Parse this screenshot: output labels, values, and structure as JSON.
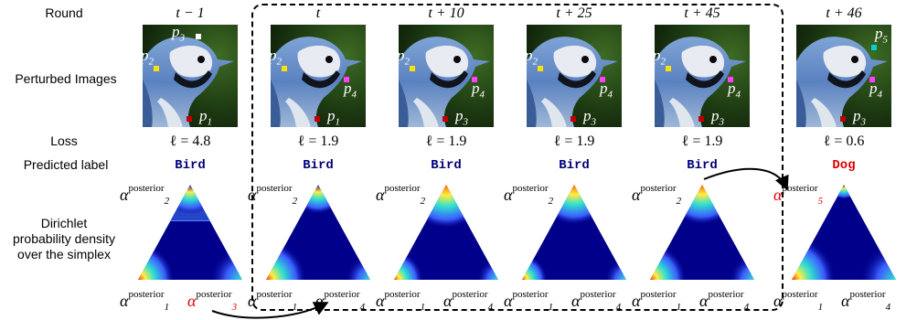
{
  "row_labels": {
    "round": "Round",
    "perturbed": "Perturbed Images",
    "loss": "Loss",
    "predicted": "Predicted label",
    "dirichlet_1": "Dirichlet",
    "dirichlet_2": "probability density",
    "dirichlet_3": "over the simplex"
  },
  "columns": [
    {
      "round": "t − 1",
      "loss": "ℓ = 4.8",
      "pred": "Bird",
      "pred_color": "#00007a",
      "points": [
        {
          "label": "p",
          "sub": "3",
          "color": "#ffffff"
        },
        {
          "label": "p",
          "sub": "2",
          "color": "#ffe000"
        },
        {
          "label": "p",
          "sub": "1",
          "color": "#c00000"
        }
      ],
      "alpha_top": {
        "sub": "2",
        "color": "#000000"
      },
      "alpha_left": {
        "sub": "1",
        "color": "#000000"
      },
      "alpha_right": {
        "sub": "3",
        "color": "#e00000"
      }
    },
    {
      "round": "t",
      "loss": "ℓ = 1.9",
      "pred": "Bird",
      "pred_color": "#00007a",
      "points": [
        {
          "label": "p",
          "sub": "2",
          "color": "#ffe000"
        },
        {
          "label": "p",
          "sub": "4",
          "color": "#ff40ff"
        },
        {
          "label": "p",
          "sub": "1",
          "color": "#c00000"
        }
      ],
      "alpha_top": {
        "sub": "2",
        "color": "#000000"
      },
      "alpha_left": {
        "sub": "1",
        "color": "#000000"
      },
      "alpha_right": {
        "sub": "4",
        "color": "#000000"
      }
    },
    {
      "round": "t + 10",
      "loss": "ℓ = 1.9",
      "pred": "Bird",
      "pred_color": "#00007a",
      "points": [
        {
          "label": "p",
          "sub": "2",
          "color": "#ffe000"
        },
        {
          "label": "p",
          "sub": "4",
          "color": "#ff40ff"
        },
        {
          "label": "p",
          "sub": "3",
          "color": "#c00000"
        }
      ],
      "alpha_top": {
        "sub": "2",
        "color": "#000000"
      },
      "alpha_left": {
        "sub": "1",
        "color": "#000000"
      },
      "alpha_right": {
        "sub": "4",
        "color": "#000000"
      }
    },
    {
      "round": "t + 25",
      "loss": "ℓ = 1.9",
      "pred": "Bird",
      "pred_color": "#00007a",
      "points": [
        {
          "label": "p",
          "sub": "2",
          "color": "#ffe000"
        },
        {
          "label": "p",
          "sub": "4",
          "color": "#ff40ff"
        },
        {
          "label": "p",
          "sub": "3",
          "color": "#c00000"
        }
      ],
      "alpha_top": {
        "sub": "2",
        "color": "#000000"
      },
      "alpha_left": {
        "sub": "1",
        "color": "#000000"
      },
      "alpha_right": {
        "sub": "4",
        "color": "#000000"
      }
    },
    {
      "round": "t + 45",
      "loss": "ℓ = 1.9",
      "pred": "Bird",
      "pred_color": "#00007a",
      "points": [
        {
          "label": "p",
          "sub": "2",
          "color": "#ffe000"
        },
        {
          "label": "p",
          "sub": "4",
          "color": "#ff40ff"
        },
        {
          "label": "p",
          "sub": "3",
          "color": "#c00000"
        }
      ],
      "alpha_top": {
        "sub": "2",
        "color": "#000000"
      },
      "alpha_left": {
        "sub": "1",
        "color": "#000000"
      },
      "alpha_right": {
        "sub": "4",
        "color": "#000000"
      }
    },
    {
      "round": "t + 46",
      "loss": "ℓ = 0.6",
      "pred": "Dog",
      "pred_color": "#e00000",
      "points": [
        {
          "label": "p",
          "sub": "5",
          "color": "#00d0d0"
        },
        {
          "label": "p",
          "sub": "4",
          "color": "#ff40ff"
        },
        {
          "label": "p",
          "sub": "3",
          "color": "#c00000"
        }
      ],
      "alpha_top": {
        "sub": "5",
        "color": "#e00000"
      },
      "alpha_left": {
        "sub": "1",
        "color": "#000000"
      },
      "alpha_right": {
        "sub": "4",
        "color": "#000000"
      }
    }
  ],
  "alpha_symbol": "α",
  "alpha_sup": "posterior",
  "colors": {
    "density_dark": "#00008b",
    "accent_red": "#e00000"
  }
}
